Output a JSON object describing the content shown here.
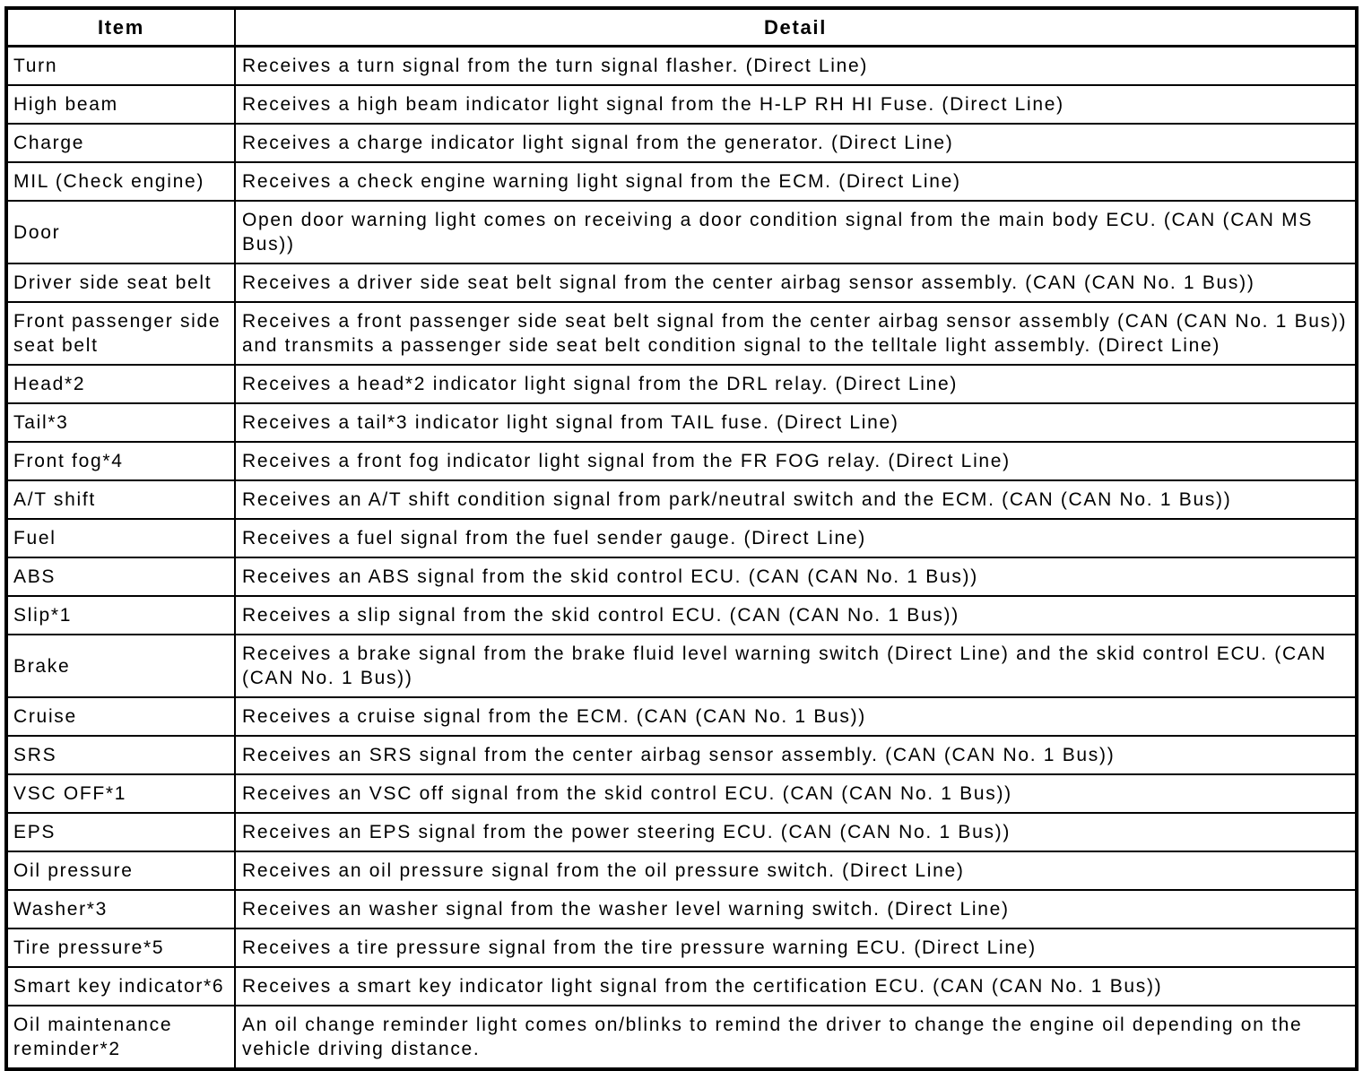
{
  "page": {
    "background_color": "#ffffff",
    "text_color": "#000000",
    "border_color": "#000000"
  },
  "table": {
    "headers": [
      "Item",
      "Detail"
    ],
    "rows": [
      {
        "item": "Turn",
        "detail": "Receives a turn signal from the turn signal flasher. (Direct Line)"
      },
      {
        "item": "High beam",
        "detail": "Receives a high beam indicator light signal from the H-LP RH HI Fuse. (Direct Line)"
      },
      {
        "item": "Charge",
        "detail": "Receives a charge indicator light signal from the generator. (Direct Line)"
      },
      {
        "item": "MIL (Check engine)",
        "detail": "Receives a check engine warning light signal from the ECM. (Direct Line)"
      },
      {
        "item": "Door",
        "detail": "Open door warning light comes on receiving a door condition signal from the main body ECU. (CAN (CAN MS Bus))"
      },
      {
        "item": "Driver side seat belt",
        "detail": "Receives a driver side seat belt signal from the center airbag sensor assembly. (CAN (CAN No. 1 Bus))"
      },
      {
        "item": "Front passenger side seat belt",
        "detail": "Receives a front passenger side seat belt signal from the center airbag sensor assembly (CAN (CAN No. 1 Bus)) and transmits a passenger side seat belt condition signal to the telltale light assembly. (Direct Line)"
      },
      {
        "item": "Head*2",
        "detail": "Receives a head*2 indicator light signal from the DRL relay. (Direct Line)"
      },
      {
        "item": "Tail*3",
        "detail": "Receives a tail*3 indicator light signal from TAIL fuse. (Direct Line)"
      },
      {
        "item": "Front fog*4",
        "detail": "Receives a front fog indicator light signal from the FR FOG relay. (Direct Line)"
      },
      {
        "item": "A/T shift",
        "detail": "Receives an A/T shift condition signal from park/neutral switch and the ECM. (CAN (CAN No. 1 Bus))"
      },
      {
        "item": "Fuel",
        "detail": "Receives a fuel signal from the fuel sender gauge. (Direct Line)"
      },
      {
        "item": "ABS",
        "detail": "Receives an ABS signal from the skid control ECU. (CAN (CAN No. 1 Bus))"
      },
      {
        "item": "Slip*1",
        "detail": "Receives a slip signal from the skid control ECU. (CAN (CAN No. 1 Bus))"
      },
      {
        "item": "Brake",
        "detail": "Receives a brake signal from the brake fluid level warning switch (Direct Line) and the skid control ECU. (CAN (CAN No. 1 Bus))"
      },
      {
        "item": "Cruise",
        "detail": "Receives a cruise signal from the ECM. (CAN (CAN No. 1 Bus))"
      },
      {
        "item": "SRS",
        "detail": "Receives an SRS signal from the center airbag sensor assembly. (CAN (CAN No. 1 Bus))"
      },
      {
        "item": "VSC OFF*1",
        "detail": "Receives an VSC off signal from the skid control ECU. (CAN (CAN No. 1 Bus))"
      },
      {
        "item": "EPS",
        "detail": "Receives an EPS signal from the power steering ECU. (CAN (CAN No. 1 Bus))"
      },
      {
        "item": "Oil pressure",
        "detail": "Receives an oil pressure signal from the oil pressure switch. (Direct Line)"
      },
      {
        "item": "Washer*3",
        "detail": "Receives an washer signal from the washer level warning switch. (Direct Line)"
      },
      {
        "item": "Tire pressure*5",
        "detail": "Receives a tire pressure signal from the tire pressure warning ECU. (Direct Line)"
      },
      {
        "item": "Smart key indicator*6",
        "detail": "Receives a smart key indicator light signal from the certification ECU. (CAN (CAN No. 1 Bus))"
      },
      {
        "item": "Oil maintenance reminder*2",
        "detail": "An oil change reminder light comes on/blinks to remind the driver to change the engine oil depending on the vehicle driving distance."
      }
    ]
  }
}
